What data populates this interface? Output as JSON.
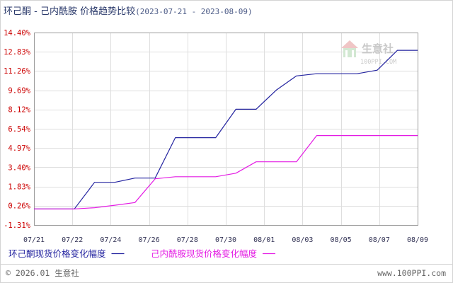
{
  "chart_data": {
    "type": "line",
    "title": "环己酮 - 己内酰胺 价格趋势比较",
    "date_range": "(2023-07-21 - 2023-08-09)",
    "x": [
      "2023-07-21",
      "2023-07-22",
      "2023-07-23",
      "2023-07-24",
      "2023-07-25",
      "2023-07-26",
      "2023-07-27",
      "2023-07-28",
      "2023-07-29",
      "2023-07-30",
      "2023-07-31",
      "2023-08-01",
      "2023-08-02",
      "2023-08-03",
      "2023-08-04",
      "2023-08-05",
      "2023-08-06",
      "2023-08-07",
      "2023-08-08",
      "2023-08-09"
    ],
    "xticks": [
      "07/21",
      "07/22",
      "07/24",
      "07/26",
      "07/28",
      "07/30",
      "08/01",
      "08/03",
      "08/05",
      "08/07",
      "08/09"
    ],
    "yticks": [
      "14.40%",
      "12.83%",
      "11.26%",
      "9.69%",
      "8.12%",
      "6.54%",
      "4.97%",
      "3.40%",
      "1.83%",
      "0.26%",
      "-1.31%"
    ],
    "ylim": [
      -1.31,
      14.4
    ],
    "grid": true,
    "legend": "bottom",
    "series": [
      {
        "name": "环己酮现货价格变化幅度",
        "color": "#2424a0",
        "values": [
          0,
          0,
          0,
          2.17,
          2.17,
          2.52,
          2.52,
          5.82,
          5.82,
          5.82,
          8.14,
          8.14,
          9.7,
          10.86,
          11.04,
          11.04,
          11.04,
          11.33,
          12.95,
          12.95
        ]
      },
      {
        "name": "己内酰胺现货价格变化幅度",
        "color": "#e41ce4",
        "values": [
          0,
          0,
          0,
          0.1,
          0.3,
          0.52,
          2.46,
          2.63,
          2.63,
          2.63,
          2.92,
          3.85,
          3.85,
          3.85,
          5.99,
          5.99,
          5.99,
          5.99,
          5.99,
          5.99
        ]
      }
    ]
  },
  "watermark": {
    "brand": "生意社",
    "site": "100PPI.COM"
  },
  "footer": {
    "copyright": "© 2026.01 生意社",
    "site": "www.100PPI.com"
  }
}
